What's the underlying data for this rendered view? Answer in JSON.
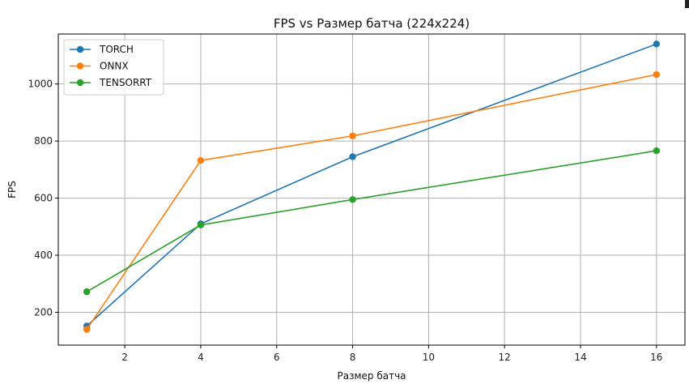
{
  "chart_data": {
    "type": "line",
    "title": "FPS vs Размер батча (224x224)",
    "xlabel": "Размер батча",
    "ylabel": "FPS",
    "x": [
      1,
      4,
      8,
      16
    ],
    "xlim": [
      0.25,
      16.75
    ],
    "ylim": [
      85,
      1175
    ],
    "xticks": [
      2,
      4,
      6,
      8,
      10,
      12,
      14,
      16
    ],
    "yticks": [
      200,
      400,
      600,
      800,
      1000
    ],
    "grid": true,
    "legend_position": "top-left",
    "series": [
      {
        "name": "TORCH",
        "color": "#1f77b4",
        "values": [
          152,
          510,
          745,
          1140
        ]
      },
      {
        "name": "ONNX",
        "color": "#ff7f0e",
        "values": [
          140,
          732,
          818,
          1033
        ]
      },
      {
        "name": "TENSORRT",
        "color": "#2ca02c",
        "values": [
          272,
          506,
          595,
          766
        ]
      }
    ]
  }
}
